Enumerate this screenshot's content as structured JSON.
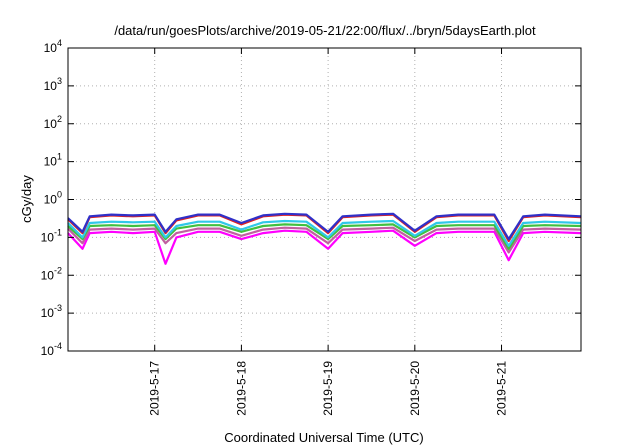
{
  "chart_data": {
    "type": "line",
    "title": "/data/run/goesPlots/archive/2019-05-21/22:00/flux/../bryn/5daysEarth.plot",
    "xlabel": "Coordinated Universal Time (UTC)",
    "ylabel": "cGy/day",
    "y_scale": "log",
    "ylim_exponents": [
      -4,
      4
    ],
    "y_ticks": [
      {
        "base": "10",
        "exp": "-4"
      },
      {
        "base": "10",
        "exp": "-3"
      },
      {
        "base": "10",
        "exp": "-2"
      },
      {
        "base": "10",
        "exp": "-1"
      },
      {
        "base": "10",
        "exp": "0"
      },
      {
        "base": "10",
        "exp": "1"
      },
      {
        "base": "10",
        "exp": "2"
      },
      {
        "base": "10",
        "exp": "3"
      },
      {
        "base": "10",
        "exp": "4"
      }
    ],
    "xlim": [
      "2019-05-16 00:00",
      "2019-05-21 22:00"
    ],
    "x_ticks": [
      "2019-5-17",
      "2019-5-18",
      "2019-5-19",
      "2019-5-20",
      "2019-5-21"
    ],
    "grid": true,
    "series": [
      {
        "color": "#3030c8",
        "values": [
          [
            "2019-05-16 00:00",
            0.32
          ],
          [
            "2019-05-16 04:00",
            0.14
          ],
          [
            "2019-05-16 06:00",
            0.36
          ],
          [
            "2019-05-16 12:00",
            0.4
          ],
          [
            "2019-05-16 18:00",
            0.38
          ],
          [
            "2019-05-17 00:00",
            0.4
          ],
          [
            "2019-05-17 03:00",
            0.14
          ],
          [
            "2019-05-17 06:00",
            0.3
          ],
          [
            "2019-05-17 12:00",
            0.4
          ],
          [
            "2019-05-17 18:00",
            0.4
          ],
          [
            "2019-05-18 00:00",
            0.24
          ],
          [
            "2019-05-18 06:00",
            0.38
          ],
          [
            "2019-05-18 12:00",
            0.42
          ],
          [
            "2019-05-18 18:00",
            0.4
          ],
          [
            "2019-05-19 00:00",
            0.14
          ],
          [
            "2019-05-19 04:00",
            0.36
          ],
          [
            "2019-05-19 12:00",
            0.4
          ],
          [
            "2019-05-19 18:00",
            0.42
          ],
          [
            "2019-05-20 00:00",
            0.15
          ],
          [
            "2019-05-20 06:00",
            0.36
          ],
          [
            "2019-05-20 12:00",
            0.4
          ],
          [
            "2019-05-20 22:00",
            0.4
          ],
          [
            "2019-05-21 02:00",
            0.09
          ],
          [
            "2019-05-21 06:00",
            0.36
          ],
          [
            "2019-05-21 12:00",
            0.4
          ],
          [
            "2019-05-21 22:00",
            0.36
          ]
        ]
      },
      {
        "color": "#e02020",
        "values": [
          [
            "2019-05-16 00:00",
            0.3
          ],
          [
            "2019-05-16 04:00",
            0.13
          ],
          [
            "2019-05-16 06:00",
            0.34
          ],
          [
            "2019-05-16 12:00",
            0.38
          ],
          [
            "2019-05-16 18:00",
            0.36
          ],
          [
            "2019-05-17 00:00",
            0.38
          ],
          [
            "2019-05-17 03:00",
            0.13
          ],
          [
            "2019-05-17 06:00",
            0.28
          ],
          [
            "2019-05-17 12:00",
            0.38
          ],
          [
            "2019-05-17 18:00",
            0.38
          ],
          [
            "2019-05-18 00:00",
            0.22
          ],
          [
            "2019-05-18 06:00",
            0.36
          ],
          [
            "2019-05-18 12:00",
            0.4
          ],
          [
            "2019-05-18 18:00",
            0.38
          ],
          [
            "2019-05-19 00:00",
            0.13
          ],
          [
            "2019-05-19 04:00",
            0.34
          ],
          [
            "2019-05-19 12:00",
            0.38
          ],
          [
            "2019-05-19 18:00",
            0.4
          ],
          [
            "2019-05-20 00:00",
            0.14
          ],
          [
            "2019-05-20 06:00",
            0.34
          ],
          [
            "2019-05-20 12:00",
            0.38
          ],
          [
            "2019-05-20 22:00",
            0.38
          ],
          [
            "2019-05-21 02:00",
            0.08
          ],
          [
            "2019-05-21 06:00",
            0.34
          ],
          [
            "2019-05-21 12:00",
            0.38
          ],
          [
            "2019-05-21 22:00",
            0.34
          ]
        ]
      },
      {
        "color": "#30c8e8",
        "values": [
          [
            "2019-05-16 00:00",
            0.24
          ],
          [
            "2019-05-16 04:00",
            0.1
          ],
          [
            "2019-05-16 06:00",
            0.24
          ],
          [
            "2019-05-16 12:00",
            0.26
          ],
          [
            "2019-05-16 18:00",
            0.25
          ],
          [
            "2019-05-17 00:00",
            0.26
          ],
          [
            "2019-05-17 03:00",
            0.1
          ],
          [
            "2019-05-17 06:00",
            0.2
          ],
          [
            "2019-05-17 12:00",
            0.26
          ],
          [
            "2019-05-17 18:00",
            0.26
          ],
          [
            "2019-05-18 00:00",
            0.16
          ],
          [
            "2019-05-18 06:00",
            0.25
          ],
          [
            "2019-05-18 12:00",
            0.27
          ],
          [
            "2019-05-18 18:00",
            0.26
          ],
          [
            "2019-05-19 00:00",
            0.1
          ],
          [
            "2019-05-19 04:00",
            0.24
          ],
          [
            "2019-05-19 12:00",
            0.26
          ],
          [
            "2019-05-19 18:00",
            0.27
          ],
          [
            "2019-05-20 00:00",
            0.11
          ],
          [
            "2019-05-20 06:00",
            0.24
          ],
          [
            "2019-05-20 12:00",
            0.26
          ],
          [
            "2019-05-20 22:00",
            0.26
          ],
          [
            "2019-05-21 02:00",
            0.06
          ],
          [
            "2019-05-21 06:00",
            0.24
          ],
          [
            "2019-05-21 12:00",
            0.26
          ],
          [
            "2019-05-21 22:00",
            0.24
          ]
        ]
      },
      {
        "color": "#40c040",
        "values": [
          [
            "2019-05-16 00:00",
            0.2
          ],
          [
            "2019-05-16 04:00",
            0.09
          ],
          [
            "2019-05-16 06:00",
            0.2
          ],
          [
            "2019-05-16 12:00",
            0.21
          ],
          [
            "2019-05-16 18:00",
            0.2
          ],
          [
            "2019-05-17 00:00",
            0.21
          ],
          [
            "2019-05-17 03:00",
            0.09
          ],
          [
            "2019-05-17 06:00",
            0.17
          ],
          [
            "2019-05-17 12:00",
            0.21
          ],
          [
            "2019-05-17 18:00",
            0.21
          ],
          [
            "2019-05-18 00:00",
            0.14
          ],
          [
            "2019-05-18 06:00",
            0.2
          ],
          [
            "2019-05-18 12:00",
            0.22
          ],
          [
            "2019-05-18 18:00",
            0.21
          ],
          [
            "2019-05-19 00:00",
            0.09
          ],
          [
            "2019-05-19 04:00",
            0.2
          ],
          [
            "2019-05-19 12:00",
            0.21
          ],
          [
            "2019-05-19 18:00",
            0.22
          ],
          [
            "2019-05-20 00:00",
            0.1
          ],
          [
            "2019-05-20 06:00",
            0.2
          ],
          [
            "2019-05-20 12:00",
            0.21
          ],
          [
            "2019-05-20 22:00",
            0.21
          ],
          [
            "2019-05-21 02:00",
            0.05
          ],
          [
            "2019-05-21 06:00",
            0.2
          ],
          [
            "2019-05-21 12:00",
            0.21
          ],
          [
            "2019-05-21 22:00",
            0.2
          ]
        ]
      },
      {
        "color": "#c060a0",
        "values": [
          [
            "2019-05-16 00:00",
            0.17
          ],
          [
            "2019-05-16 04:00",
            0.07
          ],
          [
            "2019-05-16 06:00",
            0.16
          ],
          [
            "2019-05-16 12:00",
            0.17
          ],
          [
            "2019-05-16 18:00",
            0.16
          ],
          [
            "2019-05-17 00:00",
            0.17
          ],
          [
            "2019-05-17 03:00",
            0.07
          ],
          [
            "2019-05-17 06:00",
            0.13
          ],
          [
            "2019-05-17 12:00",
            0.17
          ],
          [
            "2019-05-17 18:00",
            0.17
          ],
          [
            "2019-05-18 00:00",
            0.11
          ],
          [
            "2019-05-18 06:00",
            0.16
          ],
          [
            "2019-05-18 12:00",
            0.18
          ],
          [
            "2019-05-18 18:00",
            0.17
          ],
          [
            "2019-05-19 00:00",
            0.07
          ],
          [
            "2019-05-19 04:00",
            0.16
          ],
          [
            "2019-05-19 12:00",
            0.17
          ],
          [
            "2019-05-19 18:00",
            0.18
          ],
          [
            "2019-05-20 00:00",
            0.08
          ],
          [
            "2019-05-20 06:00",
            0.16
          ],
          [
            "2019-05-20 12:00",
            0.17
          ],
          [
            "2019-05-20 22:00",
            0.17
          ],
          [
            "2019-05-21 02:00",
            0.04
          ],
          [
            "2019-05-21 06:00",
            0.16
          ],
          [
            "2019-05-21 12:00",
            0.17
          ],
          [
            "2019-05-21 22:00",
            0.16
          ]
        ]
      },
      {
        "color": "#ff00ff",
        "values": [
          [
            "2019-05-16 00:00",
            0.13
          ],
          [
            "2019-05-16 04:00",
            0.05
          ],
          [
            "2019-05-16 06:00",
            0.13
          ],
          [
            "2019-05-16 12:00",
            0.14
          ],
          [
            "2019-05-16 18:00",
            0.13
          ],
          [
            "2019-05-17 00:00",
            0.14
          ],
          [
            "2019-05-17 03:00",
            0.02
          ],
          [
            "2019-05-17 06:00",
            0.1
          ],
          [
            "2019-05-17 12:00",
            0.14
          ],
          [
            "2019-05-17 18:00",
            0.14
          ],
          [
            "2019-05-18 00:00",
            0.09
          ],
          [
            "2019-05-18 06:00",
            0.13
          ],
          [
            "2019-05-18 12:00",
            0.15
          ],
          [
            "2019-05-18 18:00",
            0.14
          ],
          [
            "2019-05-19 00:00",
            0.05
          ],
          [
            "2019-05-19 04:00",
            0.13
          ],
          [
            "2019-05-19 12:00",
            0.14
          ],
          [
            "2019-05-19 18:00",
            0.15
          ],
          [
            "2019-05-20 00:00",
            0.06
          ],
          [
            "2019-05-20 06:00",
            0.13
          ],
          [
            "2019-05-20 12:00",
            0.14
          ],
          [
            "2019-05-20 22:00",
            0.14
          ],
          [
            "2019-05-21 02:00",
            0.025
          ],
          [
            "2019-05-21 06:00",
            0.13
          ],
          [
            "2019-05-21 12:00",
            0.14
          ],
          [
            "2019-05-21 22:00",
            0.13
          ]
        ]
      }
    ]
  }
}
